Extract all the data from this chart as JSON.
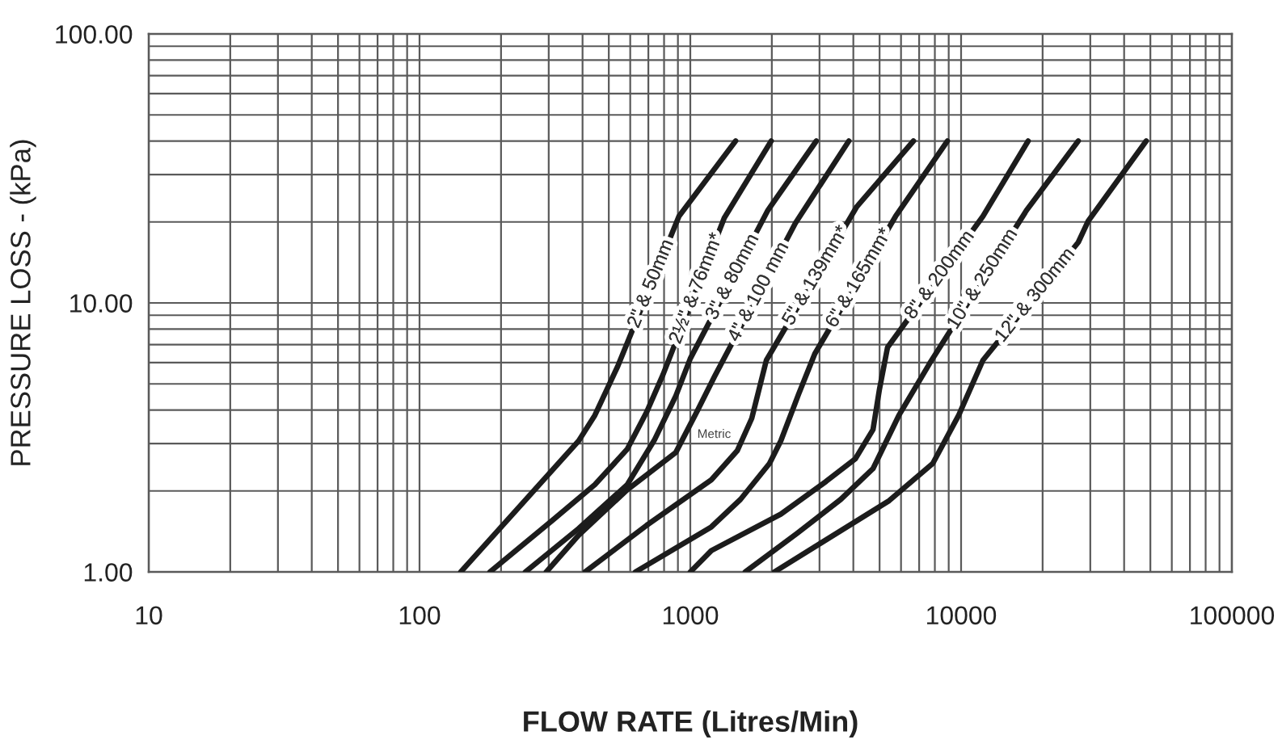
{
  "chart_data": {
    "type": "line",
    "xlabel": "FLOW RATE (Litres/Min)",
    "ylabel": "PRESSURE LOSS - (kPa)",
    "log": "xy",
    "grid": true,
    "xlim": [
      10,
      100000
    ],
    "ylim": [
      1,
      100
    ],
    "xticks": [
      10,
      {
        "value": 20,
        "label": null
      },
      {
        "value": 30,
        "label": null
      },
      {
        "value": 40,
        "label": null
      },
      {
        "value": 50,
        "label": null
      },
      {
        "value": 60,
        "label": null
      },
      {
        "value": 70,
        "label": null
      },
      {
        "value": 80,
        "label": null
      },
      {
        "value": 90,
        "label": null
      },
      100,
      {
        "value": 200,
        "label": null
      },
      {
        "value": 300,
        "label": null
      },
      {
        "value": 400,
        "label": null
      },
      {
        "value": 500,
        "label": null
      },
      {
        "value": 600,
        "label": null
      },
      {
        "value": 700,
        "label": null
      },
      {
        "value": 800,
        "label": null
      },
      {
        "value": 900,
        "label": null
      },
      1000,
      {
        "value": 2000,
        "label": null
      },
      {
        "value": 3000,
        "label": null
      },
      {
        "value": 4000,
        "label": null
      },
      {
        "value": 5000,
        "label": null
      },
      {
        "value": 6000,
        "label": null
      },
      {
        "value": 7000,
        "label": null
      },
      {
        "value": 8000,
        "label": null
      },
      {
        "value": 9000,
        "label": null
      },
      10000,
      {
        "value": 20000,
        "label": null
      },
      {
        "value": 30000,
        "label": null
      },
      {
        "value": 40000,
        "label": null
      },
      {
        "value": 50000,
        "label": null
      },
      {
        "value": 60000,
        "label": null
      },
      {
        "value": 70000,
        "label": null
      },
      {
        "value": 80000,
        "label": null
      },
      {
        "value": 90000,
        "label": null
      },
      100000
    ],
    "yticks": [
      {
        "value": 1,
        "label": "1.00"
      },
      {
        "value": 2,
        "label": null
      },
      {
        "value": 3,
        "label": null
      },
      {
        "value": 4,
        "label": null
      },
      {
        "value": 5,
        "label": null
      },
      {
        "value": 6,
        "label": null
      },
      {
        "value": 7,
        "label": null
      },
      {
        "value": 8,
        "label": null
      },
      {
        "value": 9,
        "label": null
      },
      {
        "value": 10,
        "label": "10.00"
      },
      {
        "value": 20,
        "label": null
      },
      {
        "value": 30,
        "label": null
      },
      {
        "value": 40,
        "label": null
      },
      {
        "value": 50,
        "label": null
      },
      {
        "value": 60,
        "label": null
      },
      {
        "value": 70,
        "label": null
      },
      {
        "value": 80,
        "label": null
      },
      {
        "value": 90,
        "label": null
      },
      {
        "value": 100,
        "label": "100.00"
      }
    ],
    "series": [
      {
        "name": "2\" & 50mm",
        "color": "#1c1c1c",
        "x": [
          142,
          387,
          444,
          539,
          908,
          1470
        ],
        "values": [
          1,
          3.07,
          3.82,
          5.8,
          21.0,
          40
        ]
      },
      {
        "name": "2½\" & 76mm*",
        "color": "#1c1c1c",
        "x": [
          182,
          311,
          444,
          585,
          690,
          792,
          1335,
          1990
        ],
        "values": [
          1,
          1.56,
          2.11,
          2.86,
          3.93,
          5.4,
          20.7,
          40
        ]
      },
      {
        "name": "3\" & 80mm",
        "color": "#1c1c1c",
        "x": [
          246,
          387,
          585,
          739,
          884,
          1000,
          1934,
          2920
        ],
        "values": [
          1,
          1.45,
          2.11,
          3.11,
          4.51,
          6.21,
          22.1,
          40
        ]
      },
      {
        "name": "4\" & 100 mm",
        "color": "#1c1c1c",
        "x": [
          294,
          387,
          585,
          884,
          1071,
          1229,
          2444,
          3850
        ],
        "values": [
          1,
          1.37,
          2.02,
          2.78,
          4.04,
          5.33,
          19.8,
          40
        ]
      },
      {
        "name": "5\" & 139mm*",
        "color": "#1c1c1c",
        "x": [
          409,
          690,
          1196,
          1490,
          1686,
          1909,
          4120,
          6670
        ],
        "values": [
          1,
          1.49,
          2.2,
          2.82,
          3.72,
          6.12,
          22.8,
          40
        ]
      },
      {
        "name": "6\" & 165mm*",
        "color": "#1c1c1c",
        "x": [
          627,
          1196,
          1532,
          1961,
          2159,
          2512,
          2882,
          5731,
          8900
        ],
        "values": [
          1,
          1.47,
          1.86,
          2.53,
          3.07,
          4.58,
          6.47,
          21.0,
          40
        ]
      },
      {
        "name": "8\" & 200mm",
        "color": "#1c1c1c",
        "x": [
          1000,
          1196,
          2159,
          3173,
          4064,
          4728,
          4994,
          5351,
          12040,
          17690
        ],
        "values": [
          1,
          1.2,
          1.64,
          2.17,
          2.63,
          3.38,
          4.77,
          6.84,
          21.0,
          40
        ]
      },
      {
        "name": "10\" & 250mm",
        "color": "#1c1c1c",
        "x": [
          1596,
          2477,
          3593,
          4728,
          5892,
          7648,
          17450,
          27080
        ],
        "values": [
          1,
          1.39,
          1.86,
          2.42,
          3.82,
          5.95,
          22.1,
          40
        ]
      },
      {
        "name": "12\" & 300mm",
        "color": "#1c1c1c",
        "x": [
          2044,
          5423,
          7860,
          9795,
          12040,
          27080,
          29420,
          48270
        ],
        "values": [
          1,
          1.84,
          2.53,
          3.82,
          6.12,
          16.8,
          20.1,
          40
        ]
      }
    ],
    "annotations": [
      "Metric"
    ]
  }
}
